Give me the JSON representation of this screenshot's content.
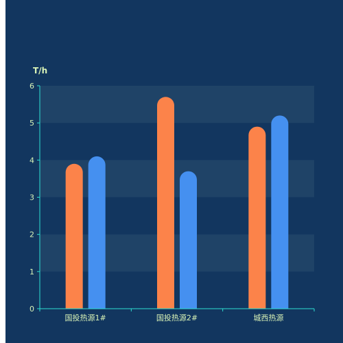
{
  "colors": {
    "panel_bg": "#12365f",
    "band": "#1f4367",
    "axis": "#2fe0d3",
    "text": "#d9f3b7",
    "series_1": "#fc834a",
    "series_2": "#4590f0"
  },
  "chart_data": {
    "type": "bar",
    "ylabel": "T/h",
    "ylim": [
      0,
      6
    ],
    "yticks": [
      "0",
      "1",
      "2",
      "3",
      "4",
      "5",
      "6"
    ],
    "categories": [
      "国投热源1#",
      "国投热源2#",
      "城西热源"
    ],
    "series": [
      {
        "values": [
          3.9,
          5.7,
          4.9
        ]
      },
      {
        "values": [
          4.1,
          3.7,
          5.2
        ]
      }
    ],
    "grid": "alternating horizontal bands",
    "legend": "none"
  }
}
